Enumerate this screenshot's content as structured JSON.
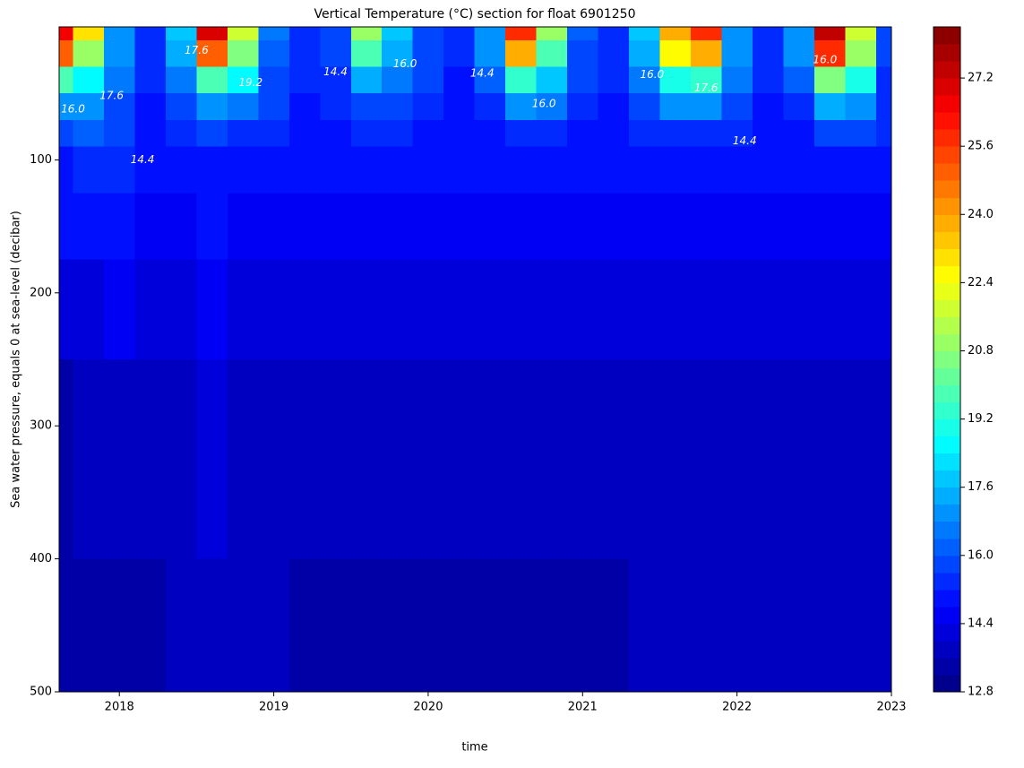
{
  "chart_data": {
    "type": "contourf",
    "title": "Vertical Temperature (°C) section for float 6901250",
    "xlabel": "time",
    "ylabel": "Sea water pressure, equals 0 at sea-level (decibar)",
    "x": [
      2017.6,
      2017.8,
      2018.0,
      2018.2,
      2018.4,
      2018.6,
      2018.8,
      2019.0,
      2019.2,
      2019.4,
      2019.6,
      2019.8,
      2020.0,
      2020.2,
      2020.4,
      2020.6,
      2020.8,
      2021.0,
      2021.2,
      2021.4,
      2021.6,
      2021.8,
      2022.0,
      2022.2,
      2022.4,
      2022.6,
      2022.8,
      2023.0
    ],
    "y": [
      0,
      20,
      40,
      60,
      80,
      100,
      150,
      200,
      300,
      500
    ],
    "z": [
      [
        26.5,
        23,
        17,
        15.6,
        18,
        27,
        22,
        16.5,
        15.5,
        16,
        21,
        18,
        16,
        15.4,
        17,
        26,
        21,
        16.2,
        15.5,
        18,
        24,
        26,
        17,
        15.5,
        17,
        27.5,
        22,
        16
      ],
      [
        25,
        21,
        16.8,
        15.5,
        17.5,
        25,
        20.5,
        16.3,
        15.4,
        15.8,
        20,
        17.5,
        15.9,
        15.3,
        16.8,
        24,
        20,
        16,
        15.4,
        17.5,
        22.5,
        24,
        16.8,
        15.4,
        16.8,
        26,
        21,
        15.8
      ],
      [
        20,
        18.5,
        16.5,
        15.4,
        16.5,
        20,
        18.5,
        16,
        15.3,
        15.5,
        17.5,
        16.5,
        15.7,
        15.2,
        16.2,
        19.5,
        18,
        15.8,
        15.3,
        16.5,
        19,
        19.5,
        16.5,
        15.3,
        16.2,
        20.5,
        19,
        15.6
      ],
      [
        17,
        17,
        16,
        15.2,
        15.8,
        17,
        16.5,
        15.8,
        15.2,
        15.3,
        16,
        15.8,
        15.4,
        15.1,
        15.6,
        17,
        16.5,
        15.5,
        15.2,
        15.8,
        16.8,
        17,
        16,
        15.2,
        15.6,
        17.5,
        17,
        15.4
      ],
      [
        15.8,
        16.2,
        15.7,
        15.1,
        15.3,
        15.8,
        15.6,
        15.5,
        15.1,
        15.1,
        15.3,
        15.3,
        15.2,
        15,
        15.2,
        15.6,
        15.5,
        15.2,
        15.1,
        15.3,
        15.5,
        15.6,
        15.5,
        15.1,
        15.2,
        15.8,
        15.7,
        15.3
      ],
      [
        15.2,
        15.6,
        15.3,
        14.9,
        15,
        15.2,
        15.1,
        15.1,
        14.9,
        14.8,
        14.9,
        14.9,
        14.9,
        14.8,
        14.9,
        15,
        15,
        14.9,
        14.9,
        15,
        15.1,
        15.1,
        15.1,
        14.9,
        14.9,
        15.2,
        15.2,
        15
      ],
      [
        14.8,
        14.9,
        14.9,
        14.6,
        14.7,
        14.8,
        14.7,
        14.7,
        14.5,
        14.5,
        14.6,
        14.6,
        14.6,
        14.5,
        14.6,
        14.6,
        14.6,
        14.6,
        14.5,
        14.6,
        14.6,
        14.6,
        14.6,
        14.5,
        14.6,
        14.7,
        14.7,
        14.6
      ],
      [
        14.3,
        14.4,
        14.5,
        14.3,
        14.4,
        14.5,
        14.4,
        14.4,
        14.3,
        14.2,
        14.3,
        14.3,
        14.3,
        14.2,
        14.3,
        14.3,
        14.3,
        14.3,
        14.2,
        14.3,
        14.3,
        14.3,
        14.3,
        14.2,
        14.3,
        14.4,
        14.4,
        14.3
      ],
      [
        13.6,
        13.7,
        13.9,
        13.9,
        14,
        14.1,
        14,
        13.9,
        13.8,
        13.7,
        13.8,
        13.9,
        13.9,
        13.8,
        13.9,
        13.9,
        13.9,
        13.9,
        13.8,
        13.9,
        13.9,
        13.9,
        13.9,
        13.9,
        13.9,
        14,
        14,
        14
      ],
      [
        13.3,
        13.4,
        13.5,
        13.6,
        13.7,
        13.8,
        13.8,
        13.7,
        13.6,
        13.5,
        13.5,
        13.6,
        13.6,
        13.5,
        13.6,
        13.6,
        13.6,
        13.6,
        13.6,
        13.7,
        13.7,
        13.7,
        13.7,
        13.7,
        13.8,
        13.8,
        13.8,
        13.8
      ]
    ],
    "xlim": [
      2017.61,
      2023.0
    ],
    "xticks": [
      2018,
      2019,
      2020,
      2021,
      2022,
      2023
    ],
    "ylim": [
      0,
      500
    ],
    "y_inverted": true,
    "yticks": [
      100,
      200,
      300,
      400,
      500
    ],
    "colormap": "jet",
    "zlim": [
      12.8,
      28.4
    ],
    "level_step": 0.4,
    "zticks": [
      12.8,
      14.4,
      {
        "value": 16,
        "label": "16.0"
      },
      17.6,
      19.2,
      20.8,
      22.4,
      {
        "value": 24,
        "label": "24.0"
      },
      25.6,
      27.2
    ],
    "contour_labels": [
      {
        "label": "16.0",
        "x": 2017.7,
        "y": 62
      },
      {
        "label": "17.6",
        "x": 2017.95,
        "y": 52
      },
      {
        "label": "14.4",
        "x": 2018.15,
        "y": 100
      },
      {
        "label": "17.6",
        "x": 2018.5,
        "y": 18
      },
      {
        "label": "19.2",
        "x": 2018.85,
        "y": 42
      },
      {
        "label": "14.4",
        "x": 2019.4,
        "y": 34
      },
      {
        "label": "16.0",
        "x": 2019.85,
        "y": 28
      },
      {
        "label": "14.4",
        "x": 2020.35,
        "y": 35
      },
      {
        "label": "16.0",
        "x": 2020.75,
        "y": 58
      },
      {
        "label": "16.0",
        "x": 2021.45,
        "y": 36
      },
      {
        "label": "17.6",
        "x": 2021.8,
        "y": 46
      },
      {
        "label": "14.4",
        "x": 2022.05,
        "y": 86
      },
      {
        "label": "16.0",
        "x": 2022.57,
        "y": 25
      }
    ]
  }
}
